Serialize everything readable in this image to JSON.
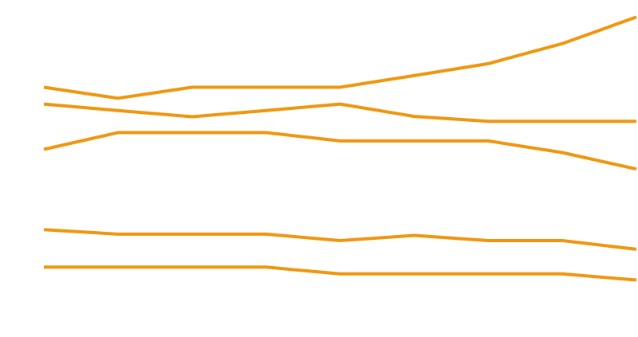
{
  "chart_data": {
    "type": "line",
    "title": "",
    "xlabel": "",
    "ylabel": "",
    "x": [
      1,
      2,
      3,
      4,
      5,
      6,
      7,
      8,
      9
    ],
    "xlim": [
      1,
      9
    ],
    "ylim": [
      0,
      100
    ],
    "grid": false,
    "legend": "none",
    "line_color": "#F0960E",
    "series": [
      {
        "values": [
          74.5,
          71.1,
          74.5,
          74.5,
          74.5,
          78.1,
          81.8,
          88.0,
          96.2
        ]
      },
      {
        "values": [
          69.3,
          67.3,
          65.4,
          67.3,
          69.3,
          65.5,
          64.0,
          64.0,
          64.0
        ]
      },
      {
        "values": [
          55.3,
          60.5,
          60.5,
          60.5,
          57.9,
          57.9,
          57.9,
          54.3,
          49.2
        ]
      },
      {
        "values": [
          30.5,
          29.1,
          29.1,
          29.1,
          27.1,
          28.7,
          27.1,
          27.1,
          24.4
        ]
      },
      {
        "values": [
          18.9,
          18.9,
          18.9,
          18.9,
          16.8,
          16.8,
          16.8,
          16.8,
          14.9
        ]
      }
    ]
  }
}
